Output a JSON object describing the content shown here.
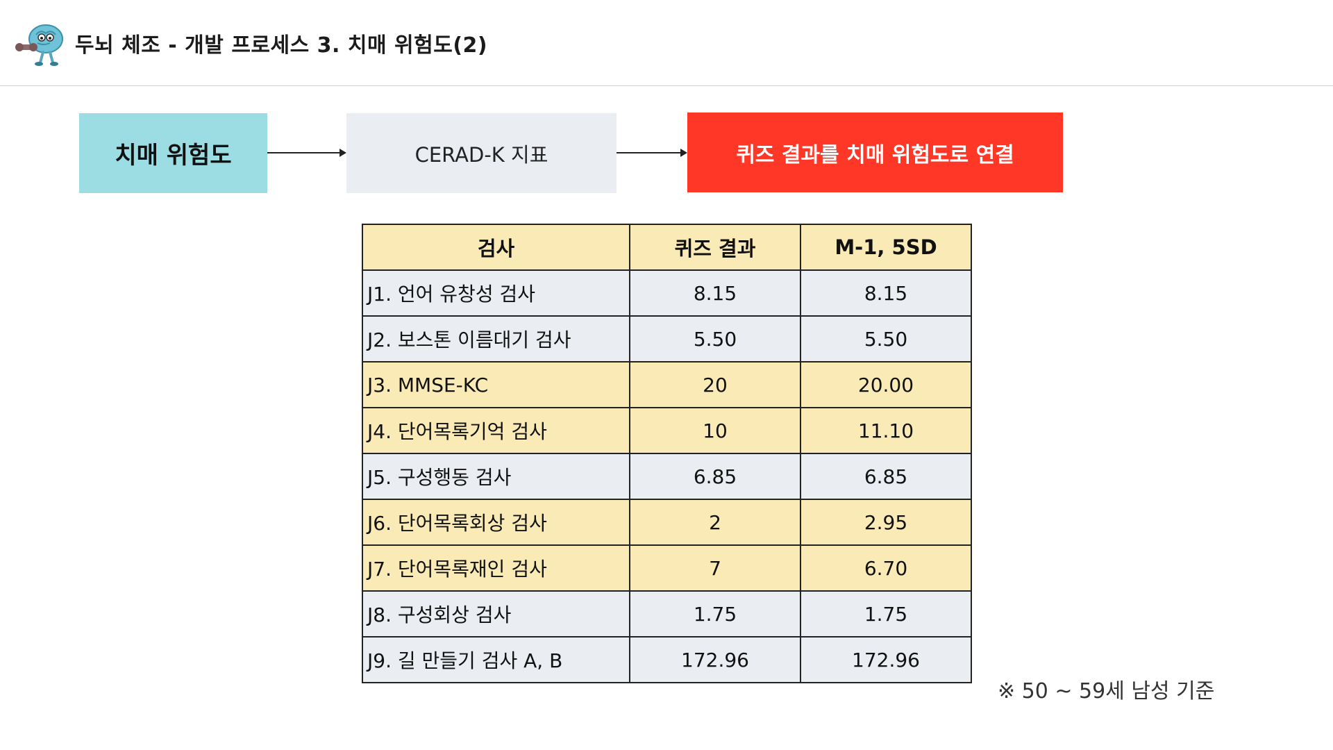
{
  "header": {
    "title": "두뇌 체조 - 개발 프로세스 3. 치매 위험도(2)",
    "mascot_icon": "brain-mascot-icon"
  },
  "flow": {
    "step1": "치매 위험도",
    "step2": "CERAD-K 지표",
    "step3": "퀴즈 결과를 치매 위험도로 연결",
    "colors": {
      "step1_bg": "#9bdde3",
      "step2_bg": "#eaeef2",
      "step3_bg": "#ff3726"
    }
  },
  "table": {
    "headers": [
      "검사",
      "퀴즈 결과",
      "M-1, 5SD"
    ],
    "rows": [
      {
        "name": "J1. 언어 유창성 검사",
        "quiz": "8.15",
        "sd": "8.15",
        "highlight": "gray"
      },
      {
        "name": "J2. 보스톤 이름대기 검사",
        "quiz": "5.50",
        "sd": "5.50",
        "highlight": "gray"
      },
      {
        "name": "J3. MMSE-KC",
        "quiz": "20",
        "sd": "20.00",
        "highlight": "yellow"
      },
      {
        "name": "J4. 단어목록기억 검사",
        "quiz": "10",
        "sd": "11.10",
        "highlight": "yellow"
      },
      {
        "name": "J5. 구성행동 검사",
        "quiz": "6.85",
        "sd": "6.85",
        "highlight": "gray"
      },
      {
        "name": "J6. 단어목록회상 검사",
        "quiz": "2",
        "sd": "2.95",
        "highlight": "yellow"
      },
      {
        "name": "J7. 단어목록재인 검사",
        "quiz": "7",
        "sd": "6.70",
        "highlight": "yellow"
      },
      {
        "name": "J8. 구성회상 검사",
        "quiz": "1.75",
        "sd": "1.75",
        "highlight": "gray"
      },
      {
        "name": "J9. 길 만들기 검사 A, B",
        "quiz": "172.96",
        "sd": "172.96",
        "highlight": "gray"
      }
    ],
    "colors": {
      "yellow": "#f9eab6",
      "gray": "#eaeef2"
    }
  },
  "footnote": "※ 50 ~ 59세 남성 기준"
}
